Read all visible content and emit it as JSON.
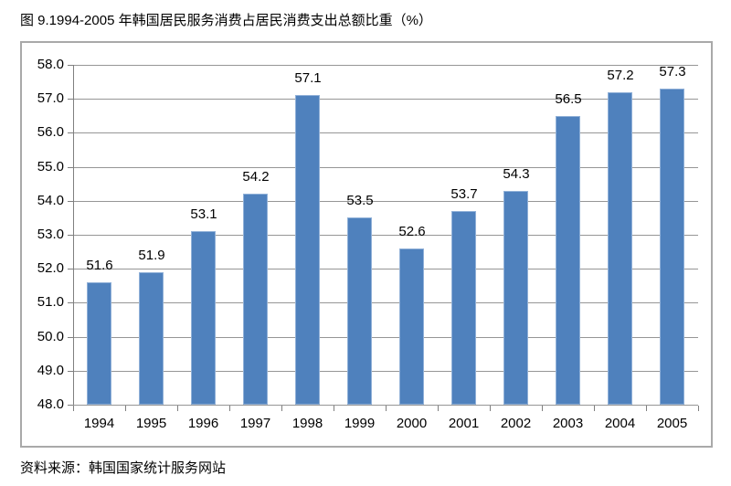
{
  "page": {
    "title": "图 9.1994-2005 年韩国居民服务消费占居民消费支出总额比重（%）",
    "source": "资料来源：韩国国家统计服务网站"
  },
  "chart_data": {
    "type": "bar",
    "title": "图 9.1994-2005 年韩国居民服务消费占居民消费支出总额比重（%）",
    "xlabel": "",
    "ylabel": "",
    "categories": [
      "1994",
      "1995",
      "1996",
      "1997",
      "1998",
      "1999",
      "2000",
      "2001",
      "2002",
      "2003",
      "2004",
      "2005"
    ],
    "values": [
      51.6,
      51.9,
      53.1,
      54.2,
      57.1,
      53.5,
      52.6,
      53.7,
      54.3,
      56.5,
      57.2,
      57.3
    ],
    "value_labels": [
      "51.6",
      "51.9",
      "53.1",
      "54.2",
      "57.1",
      "53.5",
      "52.6",
      "53.7",
      "54.3",
      "56.5",
      "57.2",
      "57.3"
    ],
    "ylim": [
      48.0,
      58.0
    ],
    "ytick_step": 1.0,
    "ytick_labels": [
      "48.0",
      "49.0",
      "50.0",
      "51.0",
      "52.0",
      "53.0",
      "54.0",
      "55.0",
      "56.0",
      "57.0",
      "58.0"
    ],
    "grid": "horizontal-on",
    "legend": "none",
    "colors": {
      "bar_fill": "#4f81bd",
      "bar_border": "#91b1d8",
      "gridline": "#969696",
      "axis": "#7f7f7f",
      "chart_border": "#a9a9a9",
      "text": "#000000"
    }
  }
}
